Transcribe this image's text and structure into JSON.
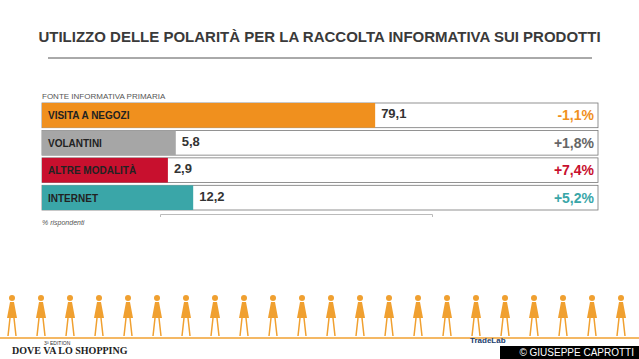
{
  "chart_data": {
    "type": "bar",
    "orientation": "horizontal",
    "title": "UTILIZZO DELLE POLARITÀ PER LA RACCOLTA INFORMATIVA SUI PRODOTTI",
    "subtitle": "FONTE INFORMATIVA PRIMARIA",
    "note": "% rispondenti",
    "categories": [
      "VISITA A NEGOZI",
      "VOLANTINI",
      "ALTRE MODALITÀ",
      "INTERNET"
    ],
    "values": [
      79.1,
      5.8,
      2.9,
      12.2
    ],
    "value_labels": [
      "79,1",
      "5,8",
      "2,9",
      "12,2"
    ],
    "colors": [
      "#f0901e",
      "#a6a6a6",
      "#c8102e",
      "#3aa6a8"
    ],
    "data_labels": true,
    "tick_labels": false,
    "xlim": [
      0,
      100
    ],
    "change_values": [
      -1.1,
      1.8,
      7.4,
      5.2
    ],
    "change_labels": [
      "-1,1%",
      "+1,8%",
      "+7,4%",
      "+5,2%"
    ],
    "footer": {
      "brand": "DOVE VA LO SHOPPING",
      "edition": "3ª EDITION",
      "partner": "TradeLab",
      "credit": "© GIUSEPPE CAPROTTI"
    }
  }
}
